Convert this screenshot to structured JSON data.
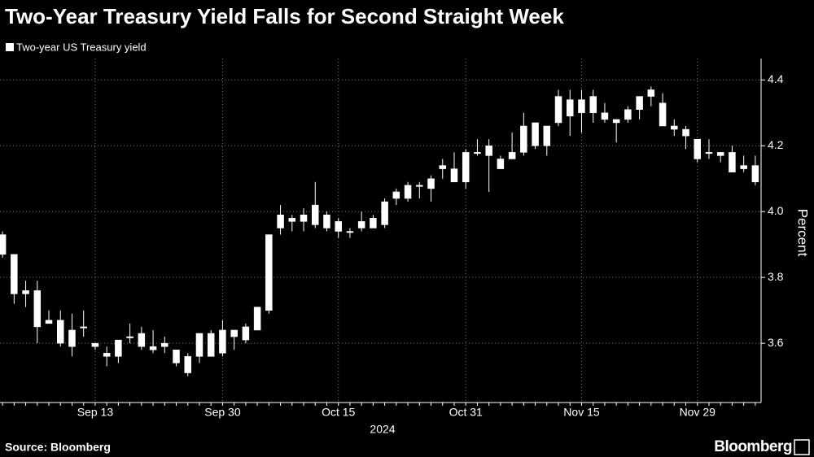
{
  "chart_data": {
    "type": "candlestick",
    "title": "Two-Year Treasury Yield Falls for Second Straight Week",
    "y_label": "Percent",
    "x_label": "2024",
    "source": "Source: Bloomberg",
    "logo": "Bloomberg",
    "categories": [
      null,
      null,
      null,
      null,
      null,
      null,
      null,
      null,
      "Sep 13",
      null,
      null,
      null,
      null,
      null,
      null,
      null,
      null,
      null,
      null,
      "Sep 30",
      null,
      null,
      null,
      null,
      null,
      null,
      null,
      null,
      null,
      "Oct 15",
      null,
      null,
      null,
      null,
      null,
      null,
      null,
      null,
      null,
      null,
      "Oct 31",
      null,
      null,
      null,
      null,
      null,
      null,
      null,
      null,
      null,
      "Nov 15",
      null,
      null,
      null,
      null,
      null,
      null,
      null,
      null,
      null,
      "Nov 29",
      null,
      null,
      null,
      null,
      null
    ],
    "series": [
      {
        "name": "Two-year US Treasury yield",
        "color": "#ffffff",
        "open": [
          3.93,
          3.87,
          3.76,
          3.76,
          3.67,
          3.67,
          3.59,
          3.65,
          3.6,
          3.57,
          3.56,
          3.62,
          3.63,
          3.59,
          3.6,
          3.58,
          3.56,
          3.56,
          3.63,
          3.57,
          3.64,
          3.61,
          3.64,
          3.7,
          3.95,
          3.97,
          3.97,
          3.96,
          3.99,
          3.97,
          3.94,
          3.95,
          3.95,
          3.96,
          4.04,
          4.04,
          4.08,
          4.07,
          4.13,
          4.13,
          4.09,
          4.18,
          4.17,
          4.16,
          4.16,
          4.18,
          4.27,
          4.2,
          4.27,
          4.34,
          4.3,
          4.35,
          4.3,
          4.28,
          4.28,
          4.31,
          4.37,
          4.33,
          4.26,
          4.25,
          4.22,
          4.18,
          4.18,
          4.18,
          4.14,
          4.14
        ],
        "high": [
          3.94,
          3.87,
          3.79,
          3.79,
          3.7,
          3.7,
          3.69,
          3.7,
          3.6,
          3.59,
          3.61,
          3.66,
          3.65,
          3.64,
          3.62,
          3.58,
          3.57,
          3.63,
          3.64,
          3.67,
          3.64,
          3.66,
          3.71,
          3.93,
          4.02,
          3.99,
          4.01,
          4.09,
          4.0,
          3.98,
          3.95,
          4.0,
          3.99,
          4.04,
          4.07,
          4.09,
          4.09,
          4.11,
          4.16,
          4.18,
          4.19,
          4.22,
          4.22,
          4.17,
          4.24,
          4.3,
          4.27,
          4.26,
          4.37,
          4.37,
          4.37,
          4.37,
          4.33,
          4.28,
          4.32,
          4.35,
          4.38,
          4.36,
          4.28,
          4.26,
          4.22,
          4.22,
          4.18,
          4.2,
          4.17,
          4.17
        ],
        "low": [
          3.86,
          3.72,
          3.71,
          3.6,
          3.66,
          3.59,
          3.56,
          3.62,
          3.58,
          3.53,
          3.54,
          3.6,
          3.58,
          3.57,
          3.57,
          3.53,
          3.5,
          3.54,
          3.56,
          3.56,
          3.58,
          3.6,
          3.64,
          3.69,
          3.93,
          3.94,
          3.94,
          3.95,
          3.94,
          3.92,
          3.92,
          3.94,
          3.95,
          3.95,
          4.02,
          4.03,
          4.04,
          4.03,
          4.1,
          4.09,
          4.07,
          4.17,
          4.06,
          4.13,
          4.16,
          4.17,
          4.19,
          4.17,
          4.26,
          4.23,
          4.24,
          4.27,
          4.27,
          4.21,
          4.27,
          4.28,
          4.32,
          4.26,
          4.23,
          4.19,
          4.15,
          4.16,
          4.15,
          4.12,
          4.12,
          4.08
        ],
        "close": [
          3.87,
          3.75,
          3.75,
          3.65,
          3.66,
          3.6,
          3.64,
          3.65,
          3.59,
          3.56,
          3.61,
          3.62,
          3.59,
          3.58,
          3.59,
          3.54,
          3.51,
          3.63,
          3.56,
          3.64,
          3.62,
          3.65,
          3.71,
          3.93,
          3.99,
          3.98,
          3.99,
          4.02,
          3.95,
          3.94,
          3.94,
          3.97,
          3.98,
          4.03,
          4.06,
          4.08,
          4.08,
          4.1,
          4.14,
          4.09,
          4.18,
          4.18,
          4.2,
          4.13,
          4.18,
          4.26,
          4.2,
          4.26,
          4.35,
          4.29,
          4.34,
          4.3,
          4.28,
          4.27,
          4.31,
          4.35,
          4.35,
          4.26,
          4.25,
          4.23,
          4.16,
          4.18,
          4.17,
          4.12,
          4.13,
          4.09
        ]
      }
    ],
    "ylim": [
      3.42,
      4.465
    ],
    "yticks": [
      3.6,
      3.8,
      {
        "value": 4,
        "label": "4.0"
      },
      4.2,
      4.4
    ],
    "grid": true
  }
}
